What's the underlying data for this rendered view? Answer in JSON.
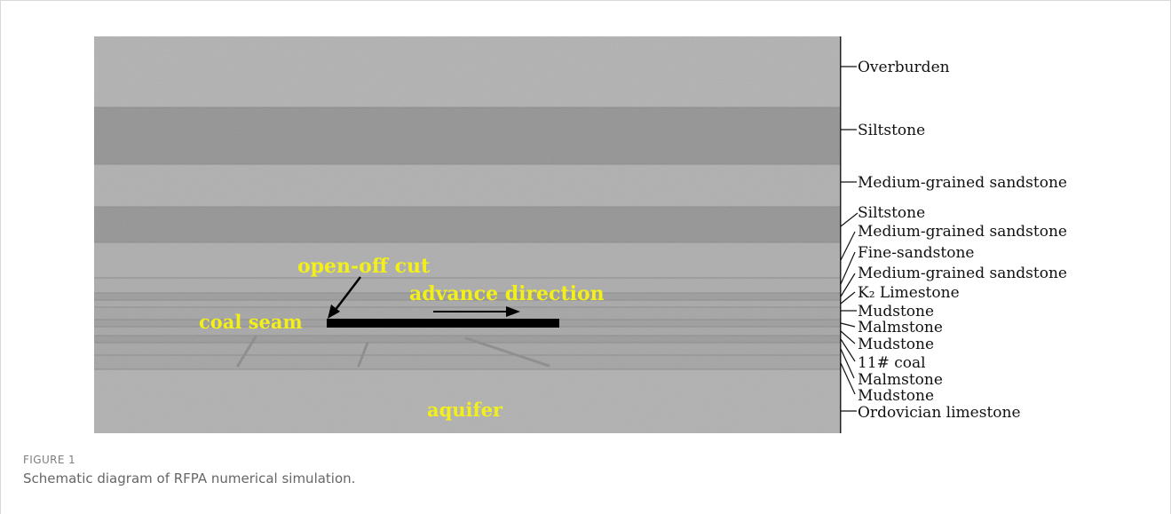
{
  "figure": {
    "caption_label": "FIGURE 1",
    "caption_text": "Schematic diagram of RFPA numerical simulation."
  },
  "annotations": {
    "open_off_cut": "open-off cut",
    "advance_direction": "advance direction",
    "coal_seam": "coal seam",
    "aquifer": "aquifer"
  },
  "layers": [
    "Overburden",
    "Siltstone",
    "Medium-grained sandstone",
    "Siltstone",
    "Medium-grained sandstone",
    "Fine-sandstone",
    "Medium-grained sandstone",
    "K₂ Limestone",
    "Mudstone",
    "Malmstone",
    "Mudstone",
    "11# coal",
    "Malmstone",
    "Mudstone",
    "Ordovician limestone"
  ],
  "colors": {
    "light_rock": "#bdbdbd",
    "dark_rock": "#9d9d9d",
    "annotation_yellow": "#f2ef1a"
  }
}
